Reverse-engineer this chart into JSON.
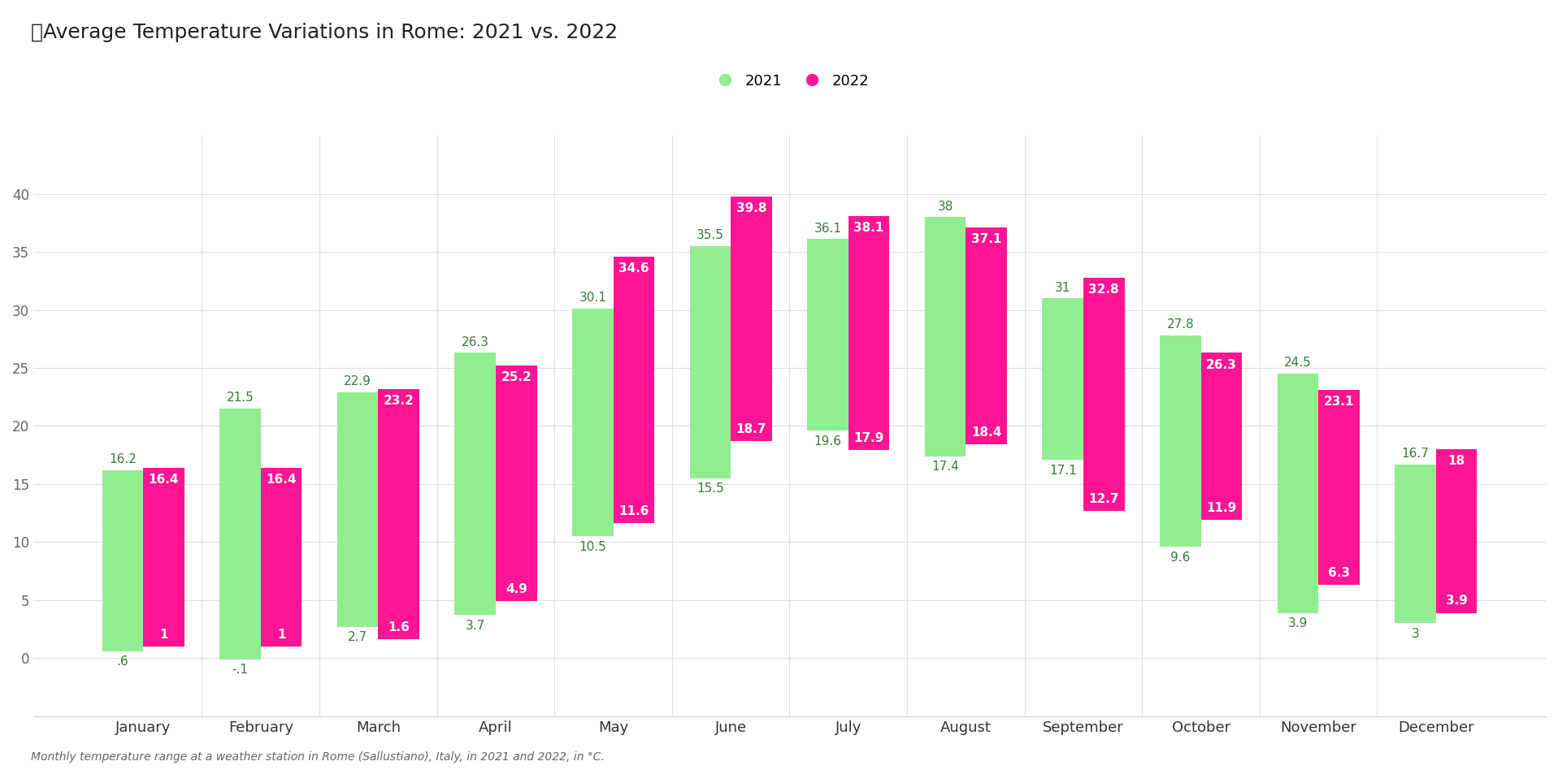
{
  "title": "Average Temperature Variations in Rome: 2021 vs. 2022",
  "title_emoji": "⛅",
  "legend_labels": [
    "2021",
    "2022"
  ],
  "months": [
    "January",
    "February",
    "March",
    "April",
    "May",
    "June",
    "July",
    "August",
    "September",
    "October",
    "November",
    "December"
  ],
  "data_2021_low": [
    0.6,
    -0.1,
    2.7,
    3.7,
    10.5,
    15.5,
    19.6,
    17.4,
    17.1,
    9.6,
    3.9,
    3.0
  ],
  "data_2021_high": [
    16.2,
    21.5,
    22.9,
    26.3,
    30.1,
    35.5,
    36.1,
    38.0,
    31.0,
    27.8,
    24.5,
    16.7
  ],
  "data_2022_low": [
    1.0,
    1.0,
    1.6,
    4.9,
    11.6,
    18.7,
    17.9,
    18.4,
    12.7,
    11.9,
    6.3,
    3.9
  ],
  "data_2022_high": [
    16.4,
    16.4,
    23.2,
    25.2,
    34.6,
    39.8,
    38.1,
    37.1,
    32.8,
    26.3,
    23.1,
    18.0
  ],
  "labels_2021_low": [
    ".6",
    "-.1",
    "2.7",
    "3.7",
    "10.5",
    "15.5",
    "19.6",
    "17.4",
    "17.1",
    "9.6",
    "3.9",
    "3"
  ],
  "labels_2021_high": [
    "16.2",
    "21.5",
    "22.9",
    "26.3",
    "30.1",
    "35.5",
    "36.1",
    "38",
    "31",
    "27.8",
    "24.5",
    "16.7"
  ],
  "labels_2022_low": [
    "1",
    "1",
    "1.6",
    "4.9",
    "11.6",
    "18.7",
    "17.9",
    "18.4",
    "12.7",
    "11.9",
    "6.3",
    "3.9"
  ],
  "labels_2022_high": [
    "16.4",
    "16.4",
    "23.2",
    "25.2",
    "34.6",
    "39.8",
    "38.1",
    "37.1",
    "32.8",
    "26.3",
    "23.1",
    "18"
  ],
  "color_2021": "#90EE90",
  "color_2022": "#FF1493",
  "ylim": [
    -5,
    45
  ],
  "yticks": [
    0,
    5,
    10,
    15,
    20,
    25,
    30,
    35,
    40
  ],
  "background_color": "#ffffff",
  "bar_width": 0.35,
  "footnote": "Monthly temperature range at a weather station in Rome (Sallustiano), Italy, in 2021 and 2022, in °C."
}
